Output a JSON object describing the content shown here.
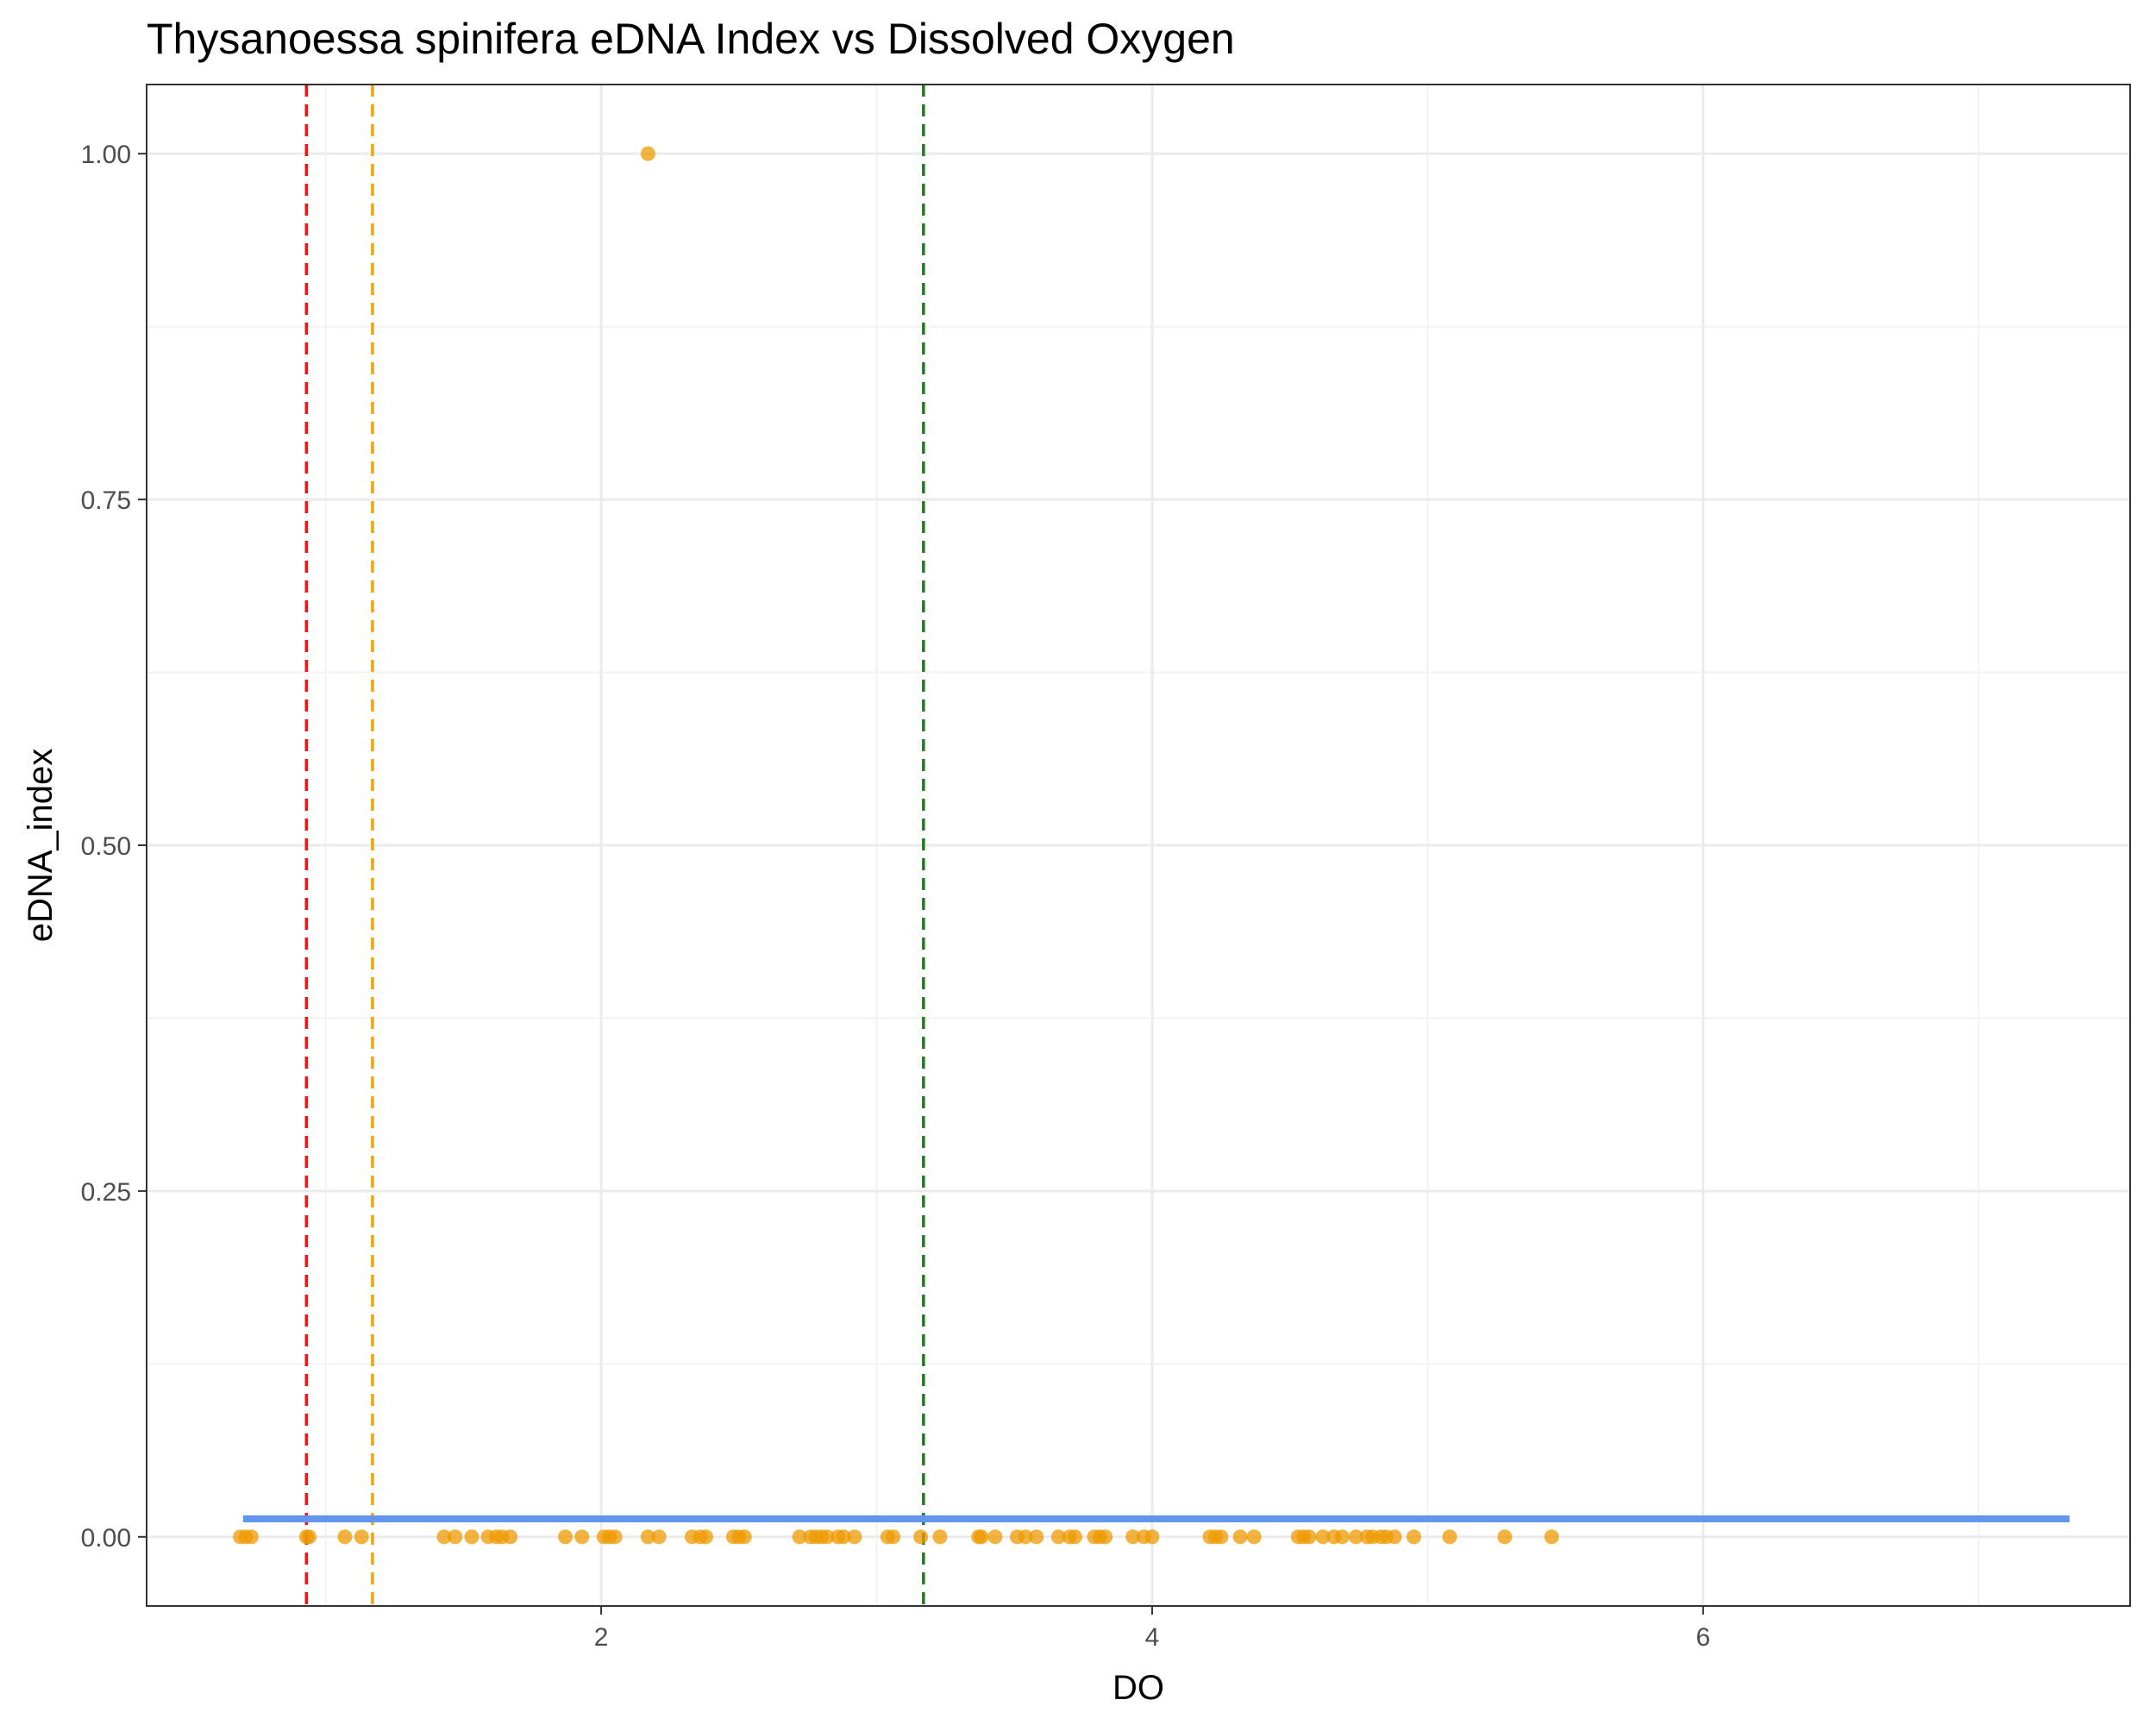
{
  "chart_data": {
    "type": "scatter",
    "title": "Thysanoessa spinifera eDNA Index vs Dissolved Oxygen",
    "xlabel": "DO",
    "ylabel": "eDNA_index",
    "xlim": [
      0.35,
      7.55
    ],
    "ylim": [
      -0.05,
      1.05
    ],
    "x_ticks": [
      2,
      4,
      6
    ],
    "x_tick_labels": [
      "2",
      "4",
      "6"
    ],
    "x_minor_ticks": [
      1,
      3,
      5,
      7
    ],
    "y_ticks": [
      0,
      0.25,
      0.5,
      0.75,
      1
    ],
    "y_tick_labels": [
      "0.00",
      "0.25",
      "0.50",
      "0.75",
      "1.00"
    ],
    "y_minor_ticks": [
      0.125,
      0.375,
      0.625,
      0.875
    ],
    "grid": true,
    "point_color": "#EE9A00",
    "point_opacity": 0.75,
    "points": [
      {
        "x": 0.69,
        "y": 0
      },
      {
        "x": 0.71,
        "y": 0
      },
      {
        "x": 0.73,
        "y": 0
      },
      {
        "x": 0.93,
        "y": 0
      },
      {
        "x": 0.94,
        "y": 0
      },
      {
        "x": 1.07,
        "y": 0
      },
      {
        "x": 1.13,
        "y": 0
      },
      {
        "x": 1.43,
        "y": 0
      },
      {
        "x": 1.47,
        "y": 0
      },
      {
        "x": 1.53,
        "y": 0
      },
      {
        "x": 1.59,
        "y": 0
      },
      {
        "x": 1.62,
        "y": 0
      },
      {
        "x": 1.64,
        "y": 0
      },
      {
        "x": 1.67,
        "y": 0
      },
      {
        "x": 1.87,
        "y": 0
      },
      {
        "x": 1.93,
        "y": 0
      },
      {
        "x": 2.01,
        "y": 0
      },
      {
        "x": 2.03,
        "y": 0
      },
      {
        "x": 2.05,
        "y": 0
      },
      {
        "x": 2.17,
        "y": 0
      },
      {
        "x": 2.21,
        "y": 0
      },
      {
        "x": 2.33,
        "y": 0
      },
      {
        "x": 2.36,
        "y": 0
      },
      {
        "x": 2.38,
        "y": 0
      },
      {
        "x": 2.48,
        "y": 0
      },
      {
        "x": 2.5,
        "y": 0
      },
      {
        "x": 2.52,
        "y": 0
      },
      {
        "x": 2.72,
        "y": 0
      },
      {
        "x": 2.76,
        "y": 0
      },
      {
        "x": 2.78,
        "y": 0
      },
      {
        "x": 2.8,
        "y": 0
      },
      {
        "x": 2.82,
        "y": 0
      },
      {
        "x": 2.86,
        "y": 0
      },
      {
        "x": 2.88,
        "y": 0
      },
      {
        "x": 2.92,
        "y": 0
      },
      {
        "x": 3.04,
        "y": 0
      },
      {
        "x": 3.06,
        "y": 0
      },
      {
        "x": 3.16,
        "y": 0
      },
      {
        "x": 3.23,
        "y": 0
      },
      {
        "x": 3.37,
        "y": 0
      },
      {
        "x": 3.38,
        "y": 0
      },
      {
        "x": 3.43,
        "y": 0
      },
      {
        "x": 3.51,
        "y": 0
      },
      {
        "x": 3.54,
        "y": 0
      },
      {
        "x": 3.58,
        "y": 0
      },
      {
        "x": 3.66,
        "y": 0
      },
      {
        "x": 3.7,
        "y": 0
      },
      {
        "x": 3.72,
        "y": 0
      },
      {
        "x": 3.79,
        "y": 0
      },
      {
        "x": 3.81,
        "y": 0
      },
      {
        "x": 3.83,
        "y": 0
      },
      {
        "x": 3.93,
        "y": 0
      },
      {
        "x": 3.97,
        "y": 0
      },
      {
        "x": 4.0,
        "y": 0
      },
      {
        "x": 4.21,
        "y": 0
      },
      {
        "x": 4.23,
        "y": 0
      },
      {
        "x": 4.25,
        "y": 0
      },
      {
        "x": 4.32,
        "y": 0
      },
      {
        "x": 4.37,
        "y": 0
      },
      {
        "x": 4.53,
        "y": 0
      },
      {
        "x": 4.55,
        "y": 0
      },
      {
        "x": 4.57,
        "y": 0
      },
      {
        "x": 4.62,
        "y": 0
      },
      {
        "x": 4.66,
        "y": 0
      },
      {
        "x": 4.69,
        "y": 0
      },
      {
        "x": 4.74,
        "y": 0
      },
      {
        "x": 4.78,
        "y": 0
      },
      {
        "x": 4.8,
        "y": 0
      },
      {
        "x": 4.83,
        "y": 0
      },
      {
        "x": 4.85,
        "y": 0
      },
      {
        "x": 4.88,
        "y": 0
      },
      {
        "x": 4.95,
        "y": 0
      },
      {
        "x": 5.08,
        "y": 0
      },
      {
        "x": 5.28,
        "y": 0
      },
      {
        "x": 5.45,
        "y": 0
      },
      {
        "x": 2.17,
        "y": 1
      }
    ],
    "smooth_line": {
      "color": "#6495ED",
      "x_start": 0.7,
      "x_end": 7.33,
      "y": 0.013
    },
    "vlines": [
      {
        "x": 0.93,
        "color": "#E41A1C"
      },
      {
        "x": 1.17,
        "color": "#F0A30A"
      },
      {
        "x": 3.17,
        "color": "#1A7F1A"
      }
    ]
  }
}
